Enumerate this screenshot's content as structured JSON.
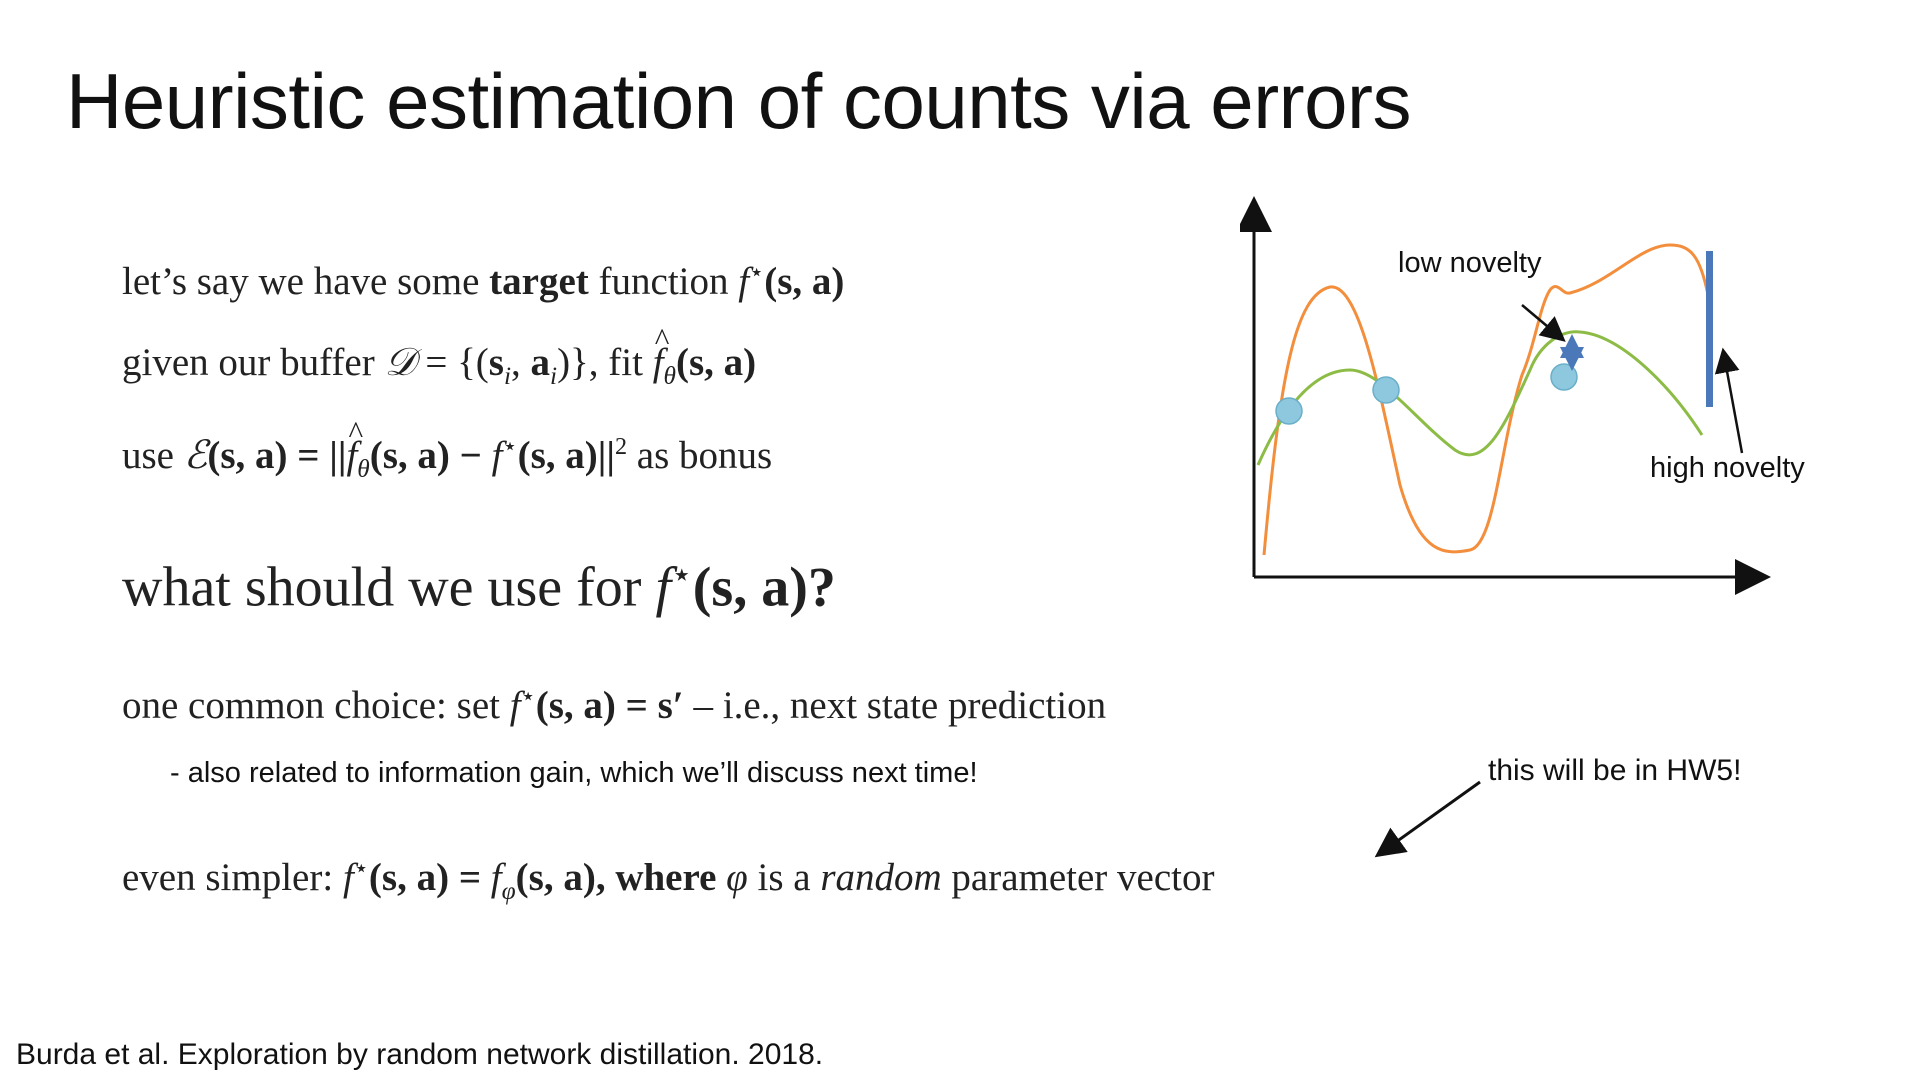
{
  "slide": {
    "title": "Heuristic estimation of counts via errors",
    "citation": "Burda et al. Exploration by random network distillation. 2018."
  },
  "content": {
    "line1": {
      "a": "let’s say we have some ",
      "b": "target",
      "c": " function ",
      "math": "f",
      "star": "⋆",
      "args": "(s, a)"
    },
    "line2": {
      "a": "given our buffer ",
      "D": "𝒟",
      "eq": " = {(",
      "s": "s",
      "i": "i",
      "comma": ", ",
      "aa": "a",
      "close": ")}, fit ",
      "f": "f",
      "theta": "θ",
      "args": "(s, a)"
    },
    "line3": {
      "a": "use ",
      "E": "ℰ",
      "args1": "(s, a) = ||",
      "f": "f",
      "theta": "θ",
      "args2": "(s, a) − ",
      "f2": "f",
      "star": "⋆",
      "args3": "(s, a)||",
      "sq": "2",
      "c": " as bonus"
    },
    "question": {
      "a": "what should we use for ",
      "f": "f",
      "star": "⋆",
      "args": "(s, a)?"
    },
    "line5": {
      "a": "one common choice: set ",
      "f": "f",
      "star": "⋆",
      "args": "(s, a) = s′",
      "c": " – i.e., next state prediction"
    },
    "note": "- also related to information gain, which we’ll discuss next time!",
    "line7": {
      "a": "even simpler: ",
      "f": "f",
      "star": "⋆",
      "args": "(s, a) = ",
      "f2": "f",
      "phi": "φ",
      "args2": "(s, a), where ",
      "phi2": "φ",
      "b": " is a ",
      "rand": "random",
      "c": " parameter vector"
    },
    "hw_note": "this will be in HW5!"
  },
  "figure": {
    "labels": {
      "low": "low novelty",
      "high": "high novelty"
    },
    "colors": {
      "target_curve": "#F28E3C",
      "fit_curve": "#8CBC46",
      "data_point": "#8EC8DF",
      "error_bar": "#4A78B8",
      "axis": "#111111"
    }
  }
}
